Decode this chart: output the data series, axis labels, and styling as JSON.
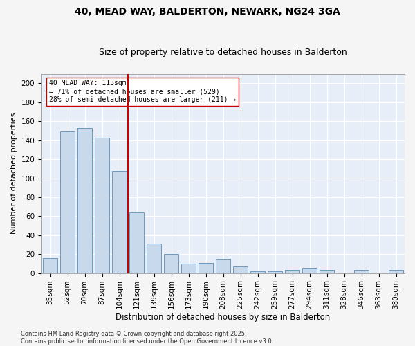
{
  "title": "40, MEAD WAY, BALDERTON, NEWARK, NG24 3GA",
  "subtitle": "Size of property relative to detached houses in Balderton",
  "xlabel": "Distribution of detached houses by size in Balderton",
  "ylabel": "Number of detached properties",
  "categories": [
    "35sqm",
    "52sqm",
    "70sqm",
    "87sqm",
    "104sqm",
    "121sqm",
    "139sqm",
    "156sqm",
    "173sqm",
    "190sqm",
    "208sqm",
    "225sqm",
    "242sqm",
    "259sqm",
    "277sqm",
    "294sqm",
    "311sqm",
    "328sqm",
    "346sqm",
    "363sqm",
    "380sqm"
  ],
  "values": [
    16,
    149,
    153,
    143,
    108,
    64,
    31,
    20,
    10,
    11,
    15,
    7,
    2,
    2,
    3,
    5,
    3,
    0,
    3,
    0,
    3
  ],
  "bar_color": "#c9d9ec",
  "bar_edge_color": "#5b8db8",
  "vline_x_index": 5,
  "vline_color": "#cc0000",
  "annotation_text": "40 MEAD WAY: 113sqm\n← 71% of detached houses are smaller (529)\n28% of semi-detached houses are larger (211) →",
  "annotation_box_facecolor": "#ffffff",
  "annotation_box_edgecolor": "#cc0000",
  "ylim": [
    0,
    210
  ],
  "yticks": [
    0,
    20,
    40,
    60,
    80,
    100,
    120,
    140,
    160,
    180,
    200
  ],
  "plot_bg_color": "#e8eef7",
  "fig_bg_color": "#f5f5f5",
  "grid_color": "#ffffff",
  "footer_text": "Contains HM Land Registry data © Crown copyright and database right 2025.\nContains public sector information licensed under the Open Government Licence v3.0.",
  "title_fontsize": 10,
  "subtitle_fontsize": 9,
  "xlabel_fontsize": 8.5,
  "ylabel_fontsize": 8,
  "tick_fontsize": 7.5,
  "annotation_fontsize": 7,
  "footer_fontsize": 6
}
